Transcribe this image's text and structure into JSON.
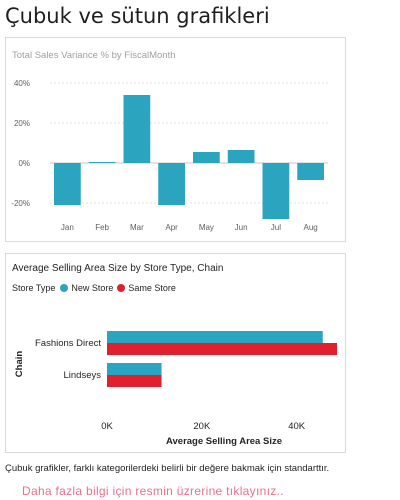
{
  "page": {
    "title": "Çubuk ve sütun grafikleri",
    "caption": "Çubuk grafikler, farklı kategorilerdeki belirli bir değere bakmak için standarttır.",
    "link_text": "Daha fazla bilgi için resmin üzrerine tıklayınız.."
  },
  "colors": {
    "teal": "#2ba5bf",
    "red": "#e0202e"
  },
  "chart_data": [
    {
      "type": "bar",
      "orientation": "vertical",
      "title": "Total Sales Variance % by FiscalMonth",
      "categories": [
        "Jan",
        "Feb",
        "Mar",
        "Apr",
        "May",
        "Jun",
        "Jul",
        "Aug"
      ],
      "values": [
        -21,
        0.5,
        34,
        -21,
        5.5,
        6.5,
        -28,
        -8.5
      ],
      "unit": "%",
      "ylim": [
        -25,
        45
      ],
      "yticks": [
        40,
        20,
        0,
        -20
      ],
      "ytick_labels": [
        "40%",
        "20%",
        "0%",
        "-20%"
      ],
      "grid": true,
      "color": "#2ba5bf"
    },
    {
      "type": "bar",
      "orientation": "horizontal",
      "title": "Average Selling Area Size by Store Type, Chain",
      "legend_title": "Store Type",
      "legend_position": "top-left",
      "categories": [
        "Fashions Direct",
        "Lindseys"
      ],
      "series": [
        {
          "name": "New Store",
          "values": [
            45500,
            11500
          ],
          "color": "#2ba5bf"
        },
        {
          "name": "Same Store",
          "values": [
            48500,
            11500
          ],
          "color": "#e0202e"
        }
      ],
      "xlabel": "Average Selling Area Size",
      "ylabel": "Chain",
      "xlim": [
        0,
        48500
      ],
      "xticks": [
        0,
        20000,
        40000
      ],
      "xtick_labels": [
        "0K",
        "20K",
        "40K"
      ]
    }
  ]
}
